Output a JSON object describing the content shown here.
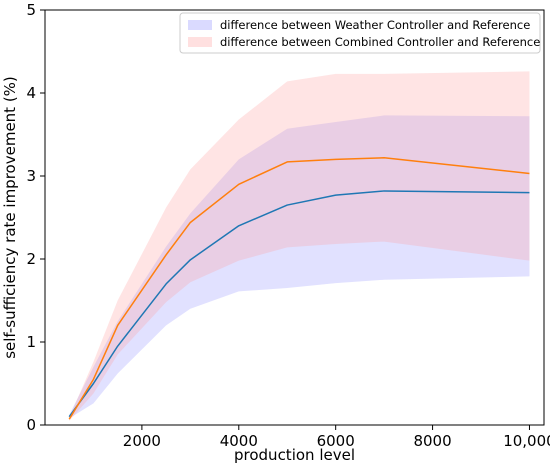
{
  "chart_data": {
    "type": "area",
    "xlabel": "production level",
    "ylabel": "self-sufficiency rate improvement (%)",
    "xlim": [
      0,
      10300
    ],
    "ylim": [
      0,
      5
    ],
    "xticks": [
      2000,
      4000,
      6000,
      8000,
      10000
    ],
    "xtick_labels": [
      "2000",
      "4000",
      "6000",
      "8000",
      "10,000"
    ],
    "yticks": [
      0,
      1,
      2,
      3,
      4,
      5
    ],
    "ytick_labels": [
      "0",
      "1",
      "2",
      "3",
      "4",
      "5"
    ],
    "grid": false,
    "legend_position": "top-right",
    "x": [
      500,
      1000,
      1500,
      2500,
      3000,
      4000,
      5000,
      6000,
      7000,
      10000
    ],
    "series": [
      {
        "name": "difference between Weather Controller and Reference",
        "line_color": "#1f77b4",
        "fill_color": "#6b6bff",
        "mean": [
          0.1,
          0.5,
          0.95,
          1.7,
          1.99,
          2.4,
          2.65,
          2.77,
          2.82,
          2.8
        ],
        "lower": [
          0.08,
          0.26,
          0.62,
          1.2,
          1.4,
          1.61,
          1.65,
          1.71,
          1.75,
          1.79
        ],
        "upper": [
          0.12,
          0.7,
          1.25,
          2.15,
          2.55,
          3.2,
          3.57,
          3.65,
          3.73,
          3.72
        ]
      },
      {
        "name": "difference between Combined Controller and Reference",
        "line_color": "#ff7f0e",
        "fill_color": "#ff9e9e",
        "mean": [
          0.07,
          0.55,
          1.2,
          2.05,
          2.44,
          2.9,
          3.17,
          3.2,
          3.22,
          3.03
        ],
        "lower": [
          0.05,
          0.38,
          0.85,
          1.48,
          1.72,
          1.98,
          2.14,
          2.18,
          2.21,
          1.98
        ],
        "upper": [
          0.09,
          0.76,
          1.5,
          2.62,
          3.08,
          3.68,
          4.14,
          4.23,
          4.23,
          4.26
        ]
      }
    ]
  }
}
